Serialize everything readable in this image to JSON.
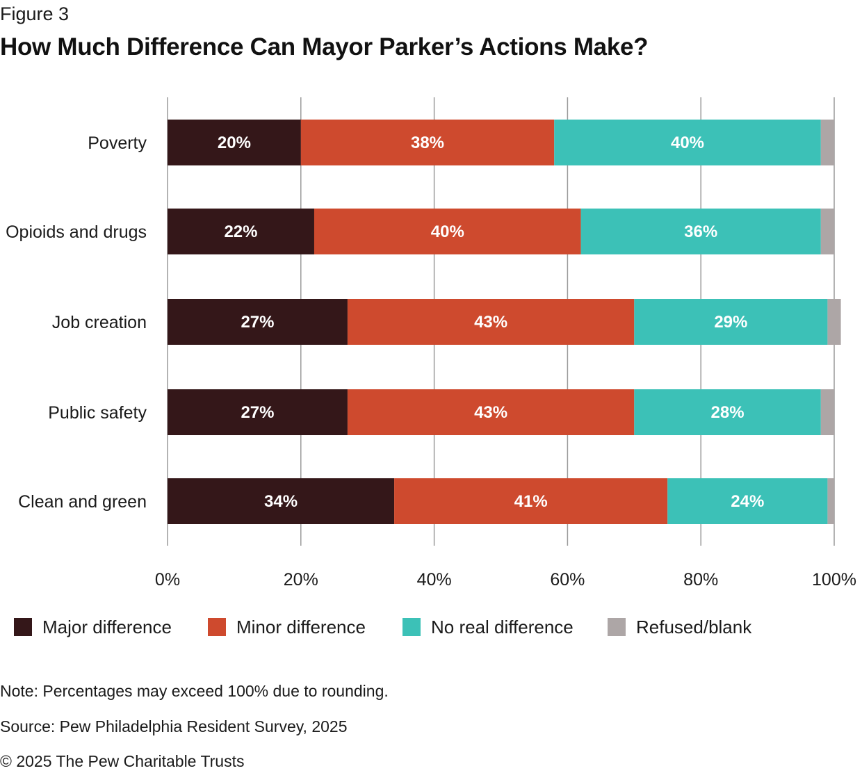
{
  "figure_label": "Figure 3",
  "title": "How Much Difference Can Mayor Parker’s Actions Make?",
  "chart_data": {
    "type": "bar",
    "orientation": "horizontal",
    "stacked": true,
    "categories": [
      "Poverty",
      "Opioids and drugs",
      "Job creation",
      "Public safety",
      "Clean and green"
    ],
    "series": [
      {
        "name": "Major difference",
        "color": "#341719",
        "values": [
          20,
          22,
          27,
          27,
          34
        ],
        "labels": [
          "20%",
          "22%",
          "27%",
          "27%",
          "34%"
        ]
      },
      {
        "name": "Minor difference",
        "color": "#CE4A2E",
        "values": [
          38,
          40,
          43,
          43,
          41
        ],
        "labels": [
          "38%",
          "40%",
          "43%",
          "43%",
          "41%"
        ]
      },
      {
        "name": "No real difference",
        "color": "#3CC1B7",
        "values": [
          40,
          36,
          29,
          28,
          24
        ],
        "labels": [
          "40%",
          "36%",
          "29%",
          "28%",
          "24%"
        ]
      },
      {
        "name": "Refused/blank",
        "color": "#ADA6A6",
        "values": [
          2,
          2,
          2,
          2,
          1
        ],
        "labels": [
          "",
          "",
          "",
          "",
          ""
        ]
      }
    ],
    "xlim": [
      0,
      100
    ],
    "x_ticks": [
      "0%",
      "20%",
      "40%",
      "60%",
      "80%",
      "100%"
    ],
    "grid": true,
    "legend_position": "bottom"
  },
  "legend": [
    {
      "label": "Major difference",
      "color": "#341719"
    },
    {
      "label": "Minor difference",
      "color": "#CE4A2E"
    },
    {
      "label": "No real difference",
      "color": "#3CC1B7"
    },
    {
      "label": "Refused/blank",
      "color": "#ADA6A6"
    }
  ],
  "note": "Note: Percentages may exceed 100% due to rounding.",
  "source": "Source: Pew Philadelphia Resident Survey, 2025",
  "copyright": "© 2025 The Pew Charitable Trusts"
}
